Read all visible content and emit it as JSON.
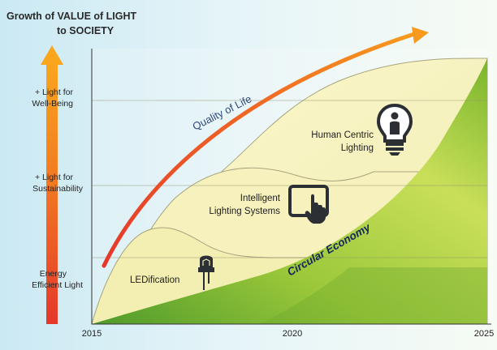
{
  "title": {
    "line1": "Growth of VALUE of LIGHT",
    "line2": "to SOCIETY"
  },
  "y_levels": [
    {
      "line1": "+ Light for",
      "line2": "Well-Being"
    },
    {
      "line1": "+ Light for",
      "line2": "Sustainability"
    },
    {
      "line1": "Energy",
      "line2": "Efficient Light"
    }
  ],
  "x_ticks": [
    "2015",
    "2020",
    "2025"
  ],
  "stages": [
    {
      "line1": "LEDification",
      "line2": "",
      "icon": "led-bulb-icon"
    },
    {
      "line1": "Intelligent",
      "line2": "Lighting Systems",
      "icon": "touch-tablet-icon"
    },
    {
      "line1": "Human Centric",
      "line2": "Lighting",
      "icon": "light-bulb-person-icon"
    }
  ],
  "curve_label": "Quality of Life",
  "economy_label": "Circular Economy",
  "colors": {
    "background_sky": "#dff1f7",
    "stage_fill": "#f7f3c2",
    "stage_stroke": "#9c9a7a",
    "green_light": "#d6e57a",
    "green_dark": "#78b52a",
    "arrow_orange": "#f7931e",
    "arrow_red": "#e5372b",
    "icon_dark": "#2c2f33"
  }
}
